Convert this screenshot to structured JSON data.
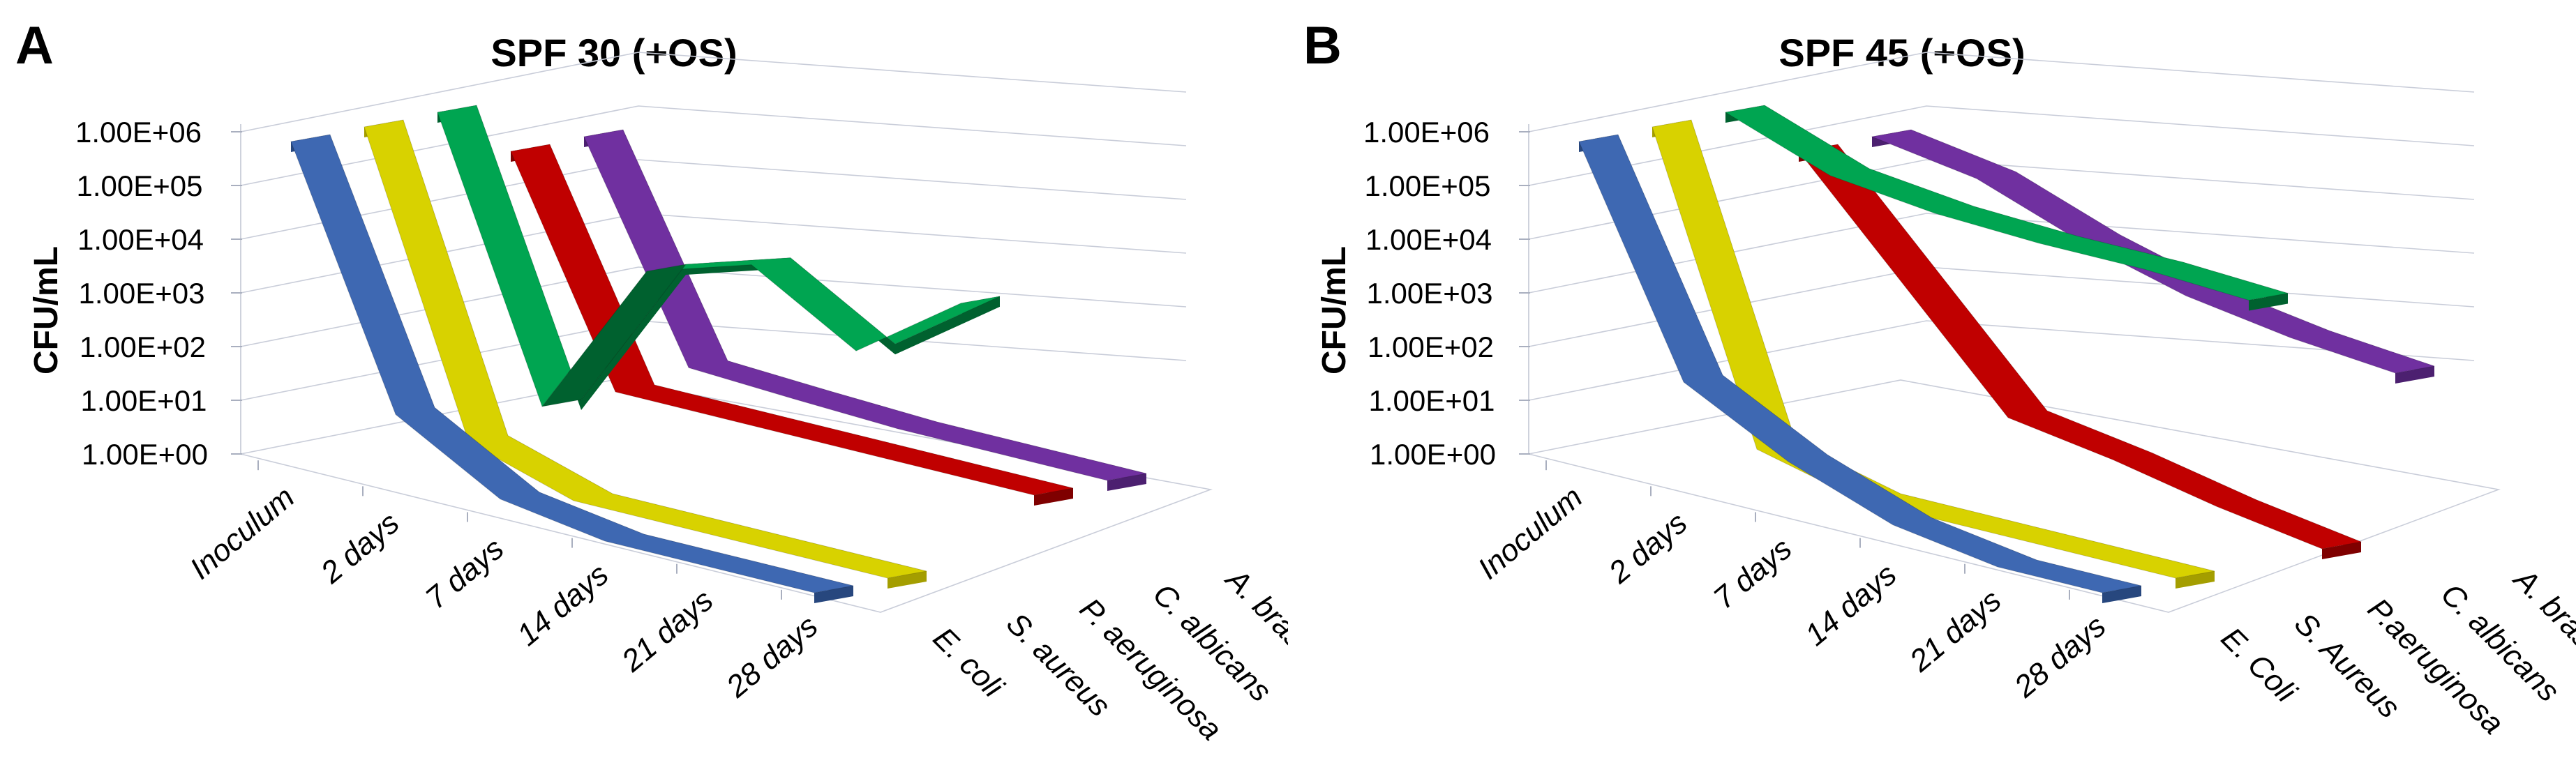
{
  "panels": [
    {
      "letter": "A",
      "title": "SPF 30 (+OS)"
    },
    {
      "letter": "B",
      "title": "SPF 45 (+OS)"
    }
  ],
  "chart_data": [
    {
      "type": "line",
      "variant": "3d-ribbon",
      "title": "SPF 30 (+OS)",
      "ylabel": "CFU/mL",
      "yscale": "log",
      "ylim": [
        1,
        1000000
      ],
      "grid": true,
      "y_tick_labels": [
        "1.00E+00",
        "1.00E+01",
        "1.00E+02",
        "1.00E+03",
        "1.00E+04",
        "1.00E+05",
        "1.00E+06"
      ],
      "categories": [
        "Inoculum",
        "2 days",
        "7 days",
        "14 days",
        "21 days",
        "28 days"
      ],
      "series": [
        {
          "name": "E. coli",
          "color": "#3E68B2",
          "dark": "#27477E",
          "values": [
            1000000,
            25,
            2,
            1,
            1,
            1
          ]
        },
        {
          "name": "S. aureus",
          "color": "#D8D200",
          "dark": "#A49E00",
          "values": [
            1000000,
            4,
            1,
            1,
            1,
            1
          ]
        },
        {
          "name": "P. aeruginosa",
          "color": "#00A551",
          "dark": "#00612F",
          "values": [
            1000000,
            10,
            10000,
            40000,
            3000,
            70000
          ]
        },
        {
          "name": "C. albicans",
          "color": "#C00000",
          "dark": "#7F0000",
          "values": [
            100000,
            10,
            10,
            10,
            10,
            10
          ]
        },
        {
          "name": "A. brasiliensis",
          "color": "#7030A0",
          "dark": "#4C2070",
          "values": [
            100000,
            15,
            12,
            10,
            10,
            10
          ]
        }
      ]
    },
    {
      "type": "line",
      "variant": "3d-ribbon",
      "title": "SPF 45 (+OS)",
      "ylabel": "CFU/mL",
      "yscale": "log",
      "ylim": [
        1,
        1000000
      ],
      "grid": true,
      "y_tick_labels": [
        "1.00E+00",
        "1.00E+01",
        "1.00E+02",
        "1.00E+03",
        "1.00E+04",
        "1.00E+05",
        "1.00E+06"
      ],
      "categories": [
        "Inoculum",
        "2 days",
        "7 days",
        "14 days",
        "21 days",
        "28 days"
      ],
      "series": [
        {
          "name": "E. Coli",
          "color": "#3E68B2",
          "dark": "#27477E",
          "values": [
            1000000,
            100,
            10,
            2,
            1,
            1
          ]
        },
        {
          "name": "S. Aureus",
          "color": "#D8D200",
          "dark": "#A49E00",
          "values": [
            1000000,
            3,
            1,
            1,
            1,
            1
          ]
        },
        {
          "name": "P.aeruginosa",
          "color": "#00A551",
          "dark": "#00612F",
          "values": [
            1000000,
            200000,
            120000,
            100000,
            100000,
            80000
          ]
        },
        {
          "name": "C. albicans",
          "color": "#C00000",
          "dark": "#7F0000",
          "values": [
            100000,
            1000,
            10,
            5,
            2,
            1
          ]
        },
        {
          "name": "A. brasiliensis",
          "color": "#7030A0",
          "dark": "#4C2070",
          "values": [
            100000,
            50000,
            10000,
            3000,
            1500,
            1000
          ]
        }
      ]
    }
  ],
  "chrome": {
    "gridline_color": "#C9CDD9",
    "tick_color": "#A9AFBF",
    "background": "#FFFFFF"
  }
}
